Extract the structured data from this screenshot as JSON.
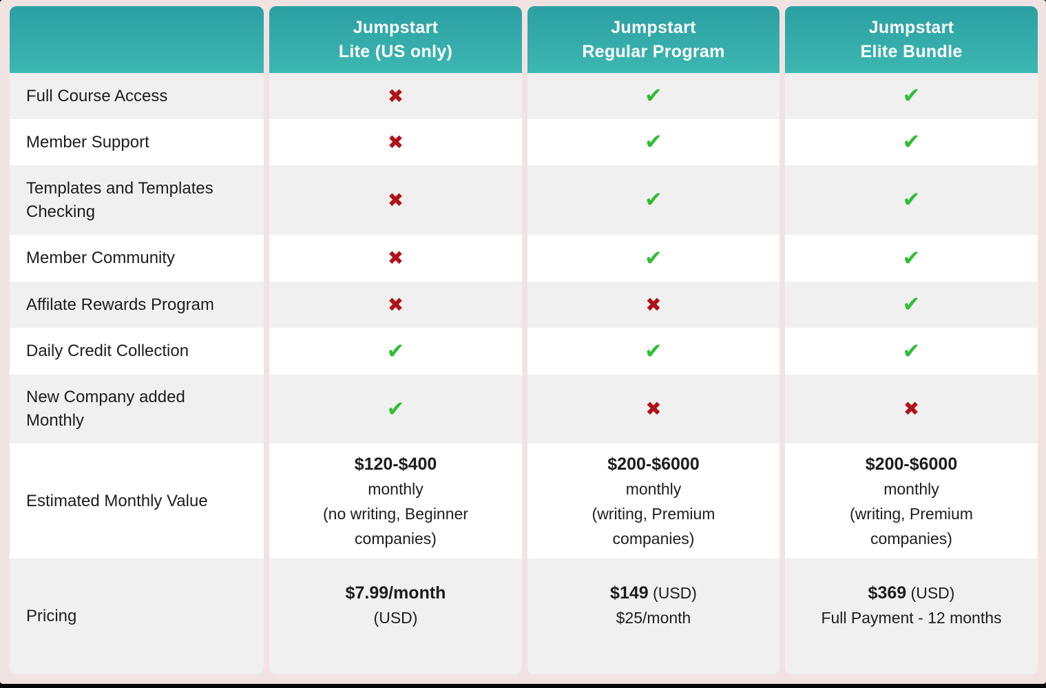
{
  "table": {
    "columns": [
      {
        "line1": "Jumpstart",
        "line2": "Lite (US only)"
      },
      {
        "line1": "Jumpstart",
        "line2": "Regular Program"
      },
      {
        "line1": "Jumpstart",
        "line2": "Elite Bundle"
      }
    ],
    "feature_rows": [
      {
        "label_lines": [
          "Full Course Access"
        ],
        "values": [
          false,
          true,
          true
        ]
      },
      {
        "label_lines": [
          "Member Support"
        ],
        "values": [
          false,
          true,
          true
        ]
      },
      {
        "label_lines": [
          "Templates and Templates",
          "Checking"
        ],
        "values": [
          false,
          true,
          true
        ]
      },
      {
        "label_lines": [
          "Member Community"
        ],
        "values": [
          false,
          true,
          true
        ]
      },
      {
        "label_lines": [
          "Affilate Rewards Program"
        ],
        "values": [
          false,
          false,
          true
        ]
      },
      {
        "label_lines": [
          "Daily Credit Collection"
        ],
        "values": [
          true,
          true,
          true
        ]
      },
      {
        "label_lines": [
          "New Company added",
          "Monthly"
        ],
        "values": [
          true,
          false,
          false
        ]
      }
    ],
    "estimated_row": {
      "label_lines": [
        "Estimated Monthly Value"
      ],
      "cells": [
        {
          "lines": [
            [
              {
                "text": "$120-$400",
                "bold": true
              }
            ],
            [
              {
                "text": "monthly"
              }
            ],
            [
              {
                "text": "(no writing, Beginner"
              }
            ],
            [
              {
                "text": "companies)"
              }
            ]
          ]
        },
        {
          "lines": [
            [
              {
                "text": "$200-$6000",
                "bold": true
              }
            ],
            [
              {
                "text": "monthly"
              }
            ],
            [
              {
                "text": "(writing, Premium"
              }
            ],
            [
              {
                "text": "companies)"
              }
            ]
          ]
        },
        {
          "lines": [
            [
              {
                "text": "$200-$6000",
                "bold": true
              }
            ],
            [
              {
                "text": "monthly"
              }
            ],
            [
              {
                "text": "(writing, Premium"
              }
            ],
            [
              {
                "text": "companies)"
              }
            ]
          ]
        }
      ]
    },
    "pricing_row": {
      "label_lines": [
        "Pricing"
      ],
      "cells": [
        {
          "lines": [
            [
              {
                "text": "$7.99/month",
                "bold": true
              }
            ],
            [
              {
                "text": "(USD)"
              }
            ]
          ]
        },
        {
          "lines": [
            [
              {
                "text": "$149",
                "bold": true
              },
              {
                "text": " (USD)"
              }
            ],
            [
              {
                "text": "$25/month"
              }
            ]
          ]
        },
        {
          "lines": [
            [
              {
                "text": "$369",
                "bold": true
              },
              {
                "text": " (USD)"
              }
            ],
            [
              {
                "text": "Full Payment - 12 months"
              }
            ]
          ]
        }
      ]
    },
    "marks": {
      "yes_glyph": "✔",
      "no_glyph": "✖",
      "yes_color": "#2fbe34",
      "no_color": "#b01218"
    },
    "theme": {
      "header_gradient_top": "#2b9fa3",
      "header_gradient_bottom": "#3db7b2",
      "row_gray": "#f1f0f0",
      "row_white": "#ffffff",
      "page_pink": "#f2e3e3",
      "text": "#1d1d1f"
    }
  }
}
